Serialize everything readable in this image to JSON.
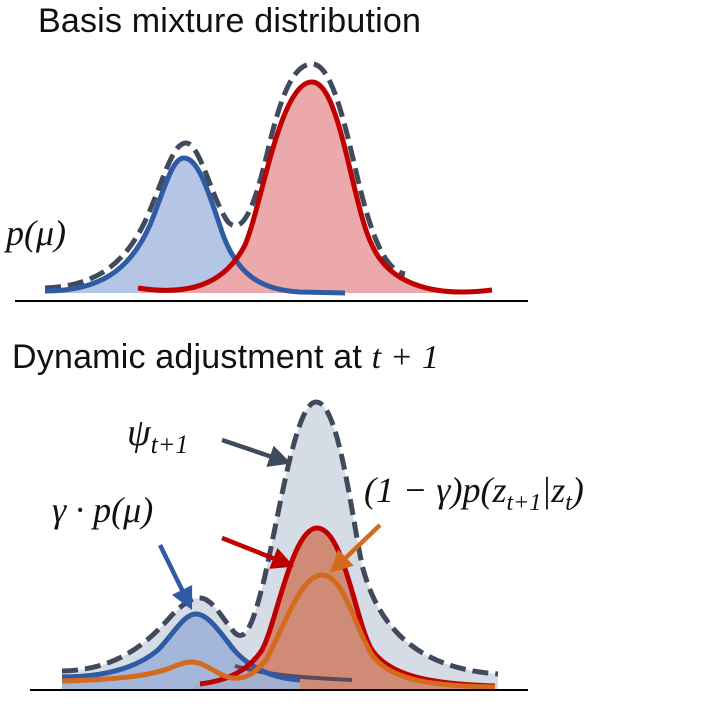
{
  "panel1": {
    "title": "Basis mixture distribution",
    "label_p_mu": "p(μ)"
  },
  "panel2": {
    "title_text": "Dynamic adjustment at ",
    "title_math": "t + 1",
    "label_psi": "ψ",
    "label_psi_sub": "t+1",
    "label_gamma_p": "γ · p(μ)",
    "label_transition": "(1 − γ)p(z",
    "label_transition_sub1": "t+1",
    "label_transition_mid": "|z",
    "label_transition_sub2": "t",
    "label_transition_end": ")"
  },
  "colors": {
    "blue": "#2e5ba3",
    "blue_fill": "#b4c5e6",
    "red": "#c00000",
    "red_fill": "#eca9ab",
    "orange": "#d46a1e",
    "orange_fill": "#cf7d63",
    "gray_dashed": "#404a5c",
    "gray_fill": "#d6dce6",
    "axis": "#000000"
  }
}
